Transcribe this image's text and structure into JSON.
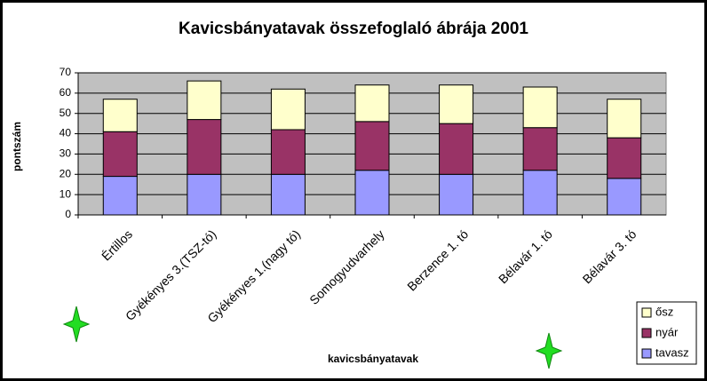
{
  "chart_data": {
    "type": "stacked-bar",
    "title": "Kavicsbányatavak összefoglaló ábrája 2001",
    "y_label": "pontszám",
    "x_label": "kavicsbányatavak",
    "categories": [
      "Értillos",
      "Gyékényes 3.(TSZ-tó)",
      "Gyékényes 1.(nagy tó)",
      "Somogyudvarhely",
      "Berzence 1. tó",
      "Bélavár 1. tó",
      "Bélavár 3. tó"
    ],
    "series": [
      {
        "name": "tavasz",
        "color": "#9999ff",
        "values": [
          19,
          20,
          20,
          22,
          20,
          22,
          18
        ]
      },
      {
        "name": "nyár",
        "color": "#993366",
        "values": [
          22,
          27,
          22,
          24,
          25,
          21,
          20
        ]
      },
      {
        "name": "ősz",
        "color": "#ffffcc",
        "values": [
          16,
          19,
          20,
          18,
          19,
          20,
          19
        ]
      }
    ],
    "ylim": [
      0,
      70
    ],
    "yticks": [
      0,
      10,
      20,
      30,
      40,
      50,
      60,
      70
    ],
    "grid": true,
    "plot_background": "#c0c0c0",
    "legend": "bottom-right"
  }
}
